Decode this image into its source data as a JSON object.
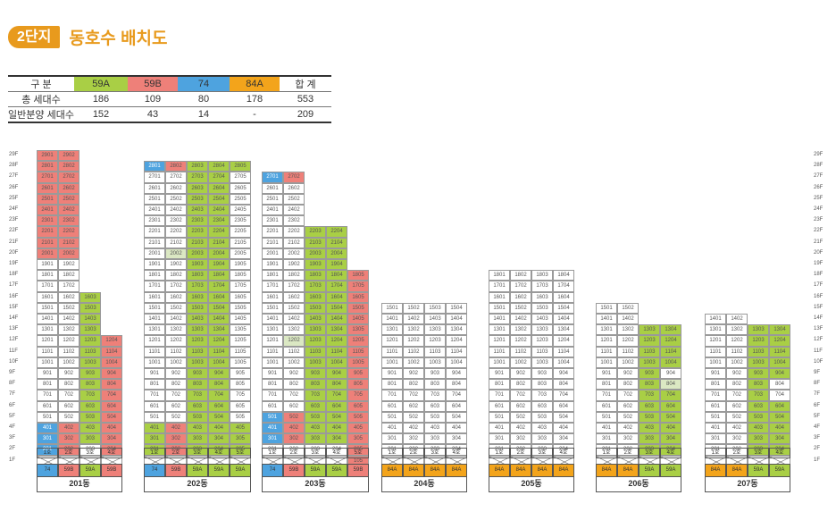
{
  "header": {
    "badge": "2단지",
    "title": "동호수 배치도"
  },
  "colors": {
    "59A": "#a9cf45",
    "59B": "#ee8079",
    "74": "#4ea3df",
    "84A": "#f3a41b",
    "empty": "#ffffff",
    "light": "#dbe8c3",
    "brand": "#e89a1d"
  },
  "summary": {
    "columns": [
      "구    분",
      "59A",
      "59B",
      "74",
      "84A",
      "합  계"
    ],
    "rows": [
      {
        "label": "총 세대수",
        "values": [
          "186",
          "109",
          "80",
          "178",
          "553"
        ]
      },
      {
        "label": "일반분양 세대수",
        "values": [
          "152",
          "43",
          "14",
          "-",
          "209"
        ]
      }
    ]
  },
  "floors": [
    "29F",
    "28F",
    "27F",
    "26F",
    "25F",
    "24F",
    "23F",
    "22F",
    "21F",
    "20F",
    "19F",
    "18F",
    "17F",
    "16F",
    "15F",
    "14F",
    "13F",
    "12F",
    "11F",
    "10F",
    "9F",
    "8F",
    "7F",
    "6F",
    "5F",
    "4F",
    "3F",
    "2F",
    "1F"
  ],
  "buildings": [
    {
      "name": "201동",
      "hos": [
        "1호",
        "2호",
        "3호",
        "4호"
      ],
      "types": [
        "74",
        "59B",
        "59A",
        "59B"
      ],
      "cols": [
        {
          "s": "B:20-29|N:16-19|74:2-4|P:1",
          "top": 29,
          "bot": 2,
          "x": true
        },
        {
          "s": "B:20-29|N:16-19|B:2-4|P:1",
          "top": 29,
          "bot": 2,
          "x": true
        },
        {
          "s": "A:3-16|P:1",
          "top": 16,
          "bot": 2,
          "x": true
        },
        {
          "s": "B:2-12|P:1",
          "top": 12,
          "bot": 2,
          "x": true
        }
      ]
    },
    {
      "name": "202동",
      "hos": [
        "1호",
        "2호",
        "3호",
        "4호",
        "5호"
      ],
      "types": [
        "74",
        "59B",
        "59A",
        "59A",
        "59A"
      ],
      "cols": [
        {
          "s": "74:28-28|A:2-4",
          "top": 28,
          "bot": 2,
          "x": true
        },
        {
          "s": "B:28-28|L:20-20|B:2-4",
          "top": 28,
          "bot": 2,
          "x": true
        },
        {
          "s": "A:2-28",
          "top": 28,
          "bot": 2,
          "x": true
        },
        {
          "s": "A:2-28",
          "top": 28,
          "bot": 2,
          "x": true
        },
        {
          "s": "A:28-28|A:2-4",
          "top": 28,
          "bot": 2,
          "x": true
        }
      ]
    },
    {
      "name": "203동",
      "hos": [
        "1호",
        "2호",
        "3호",
        "4호",
        "5호"
      ],
      "types": [
        "74",
        "59B",
        "59A",
        "59A",
        "59B"
      ],
      "cols": [
        {
          "s": "74:27-27|74:3-5",
          "top": 27,
          "bot": 2,
          "x": true
        },
        {
          "s": "B:27-27|L:12-12|B:3-5",
          "top": 27,
          "bot": 2,
          "x": true
        },
        {
          "s": "A:3-22",
          "top": 22,
          "bot": 2,
          "x": true
        },
        {
          "s": "A:3-22",
          "top": 22,
          "bot": 2,
          "x": true
        },
        {
          "s": "B:1-18",
          "top": 18,
          "bot": 1,
          "x": false
        }
      ]
    },
    {
      "name": "204동",
      "hos": [
        "1호",
        "2호",
        "3호",
        "4호"
      ],
      "types": [
        "84A",
        "84A",
        "84A",
        "84A"
      ],
      "cols": [
        {
          "s": "",
          "top": 15,
          "bot": 2,
          "x": true
        },
        {
          "s": "",
          "top": 15,
          "bot": 2,
          "x": true
        },
        {
          "s": "",
          "top": 15,
          "bot": 2,
          "x": true
        },
        {
          "s": "",
          "top": 15,
          "bot": 2,
          "x": true
        }
      ]
    },
    {
      "name": "205동",
      "hos": [
        "1호",
        "2호",
        "3호",
        "4호"
      ],
      "types": [
        "84A",
        "84A",
        "84A",
        "84A"
      ],
      "cols": [
        {
          "s": "",
          "top": 18,
          "bot": 2,
          "x": true
        },
        {
          "s": "",
          "top": 18,
          "bot": 2,
          "x": true
        },
        {
          "s": "",
          "top": 18,
          "bot": 2,
          "x": true
        },
        {
          "s": "",
          "top": 18,
          "bot": 2,
          "x": true
        }
      ]
    },
    {
      "name": "206동",
      "hos": [
        "1호",
        "2호",
        "3호",
        "4호"
      ],
      "types": [
        "84A",
        "84A",
        "59A",
        "59A"
      ],
      "cols": [
        {
          "s": "",
          "top": 15,
          "bot": 2,
          "x": true
        },
        {
          "s": "",
          "top": 15,
          "bot": 2,
          "x": true
        },
        {
          "s": "A:2-13",
          "top": 13,
          "bot": 2,
          "x": true
        },
        {
          "s": "A:10-13|L:8-8|A:2-7",
          "top": 13,
          "bot": 2,
          "x": true
        }
      ]
    },
    {
      "name": "207동",
      "hos": [
        "1호",
        "2호",
        "3호",
        "4호"
      ],
      "types": [
        "84A",
        "84A",
        "59A",
        "59A"
      ],
      "cols": [
        {
          "s": "",
          "top": 14,
          "bot": 2,
          "x": true
        },
        {
          "s": "",
          "top": 14,
          "bot": 2,
          "x": true
        },
        {
          "s": "A:2-13",
          "top": 13,
          "bot": 2,
          "x": true
        },
        {
          "s": "A:9-13|A:2-6",
          "top": 13,
          "bot": 2,
          "x": true
        }
      ]
    }
  ]
}
